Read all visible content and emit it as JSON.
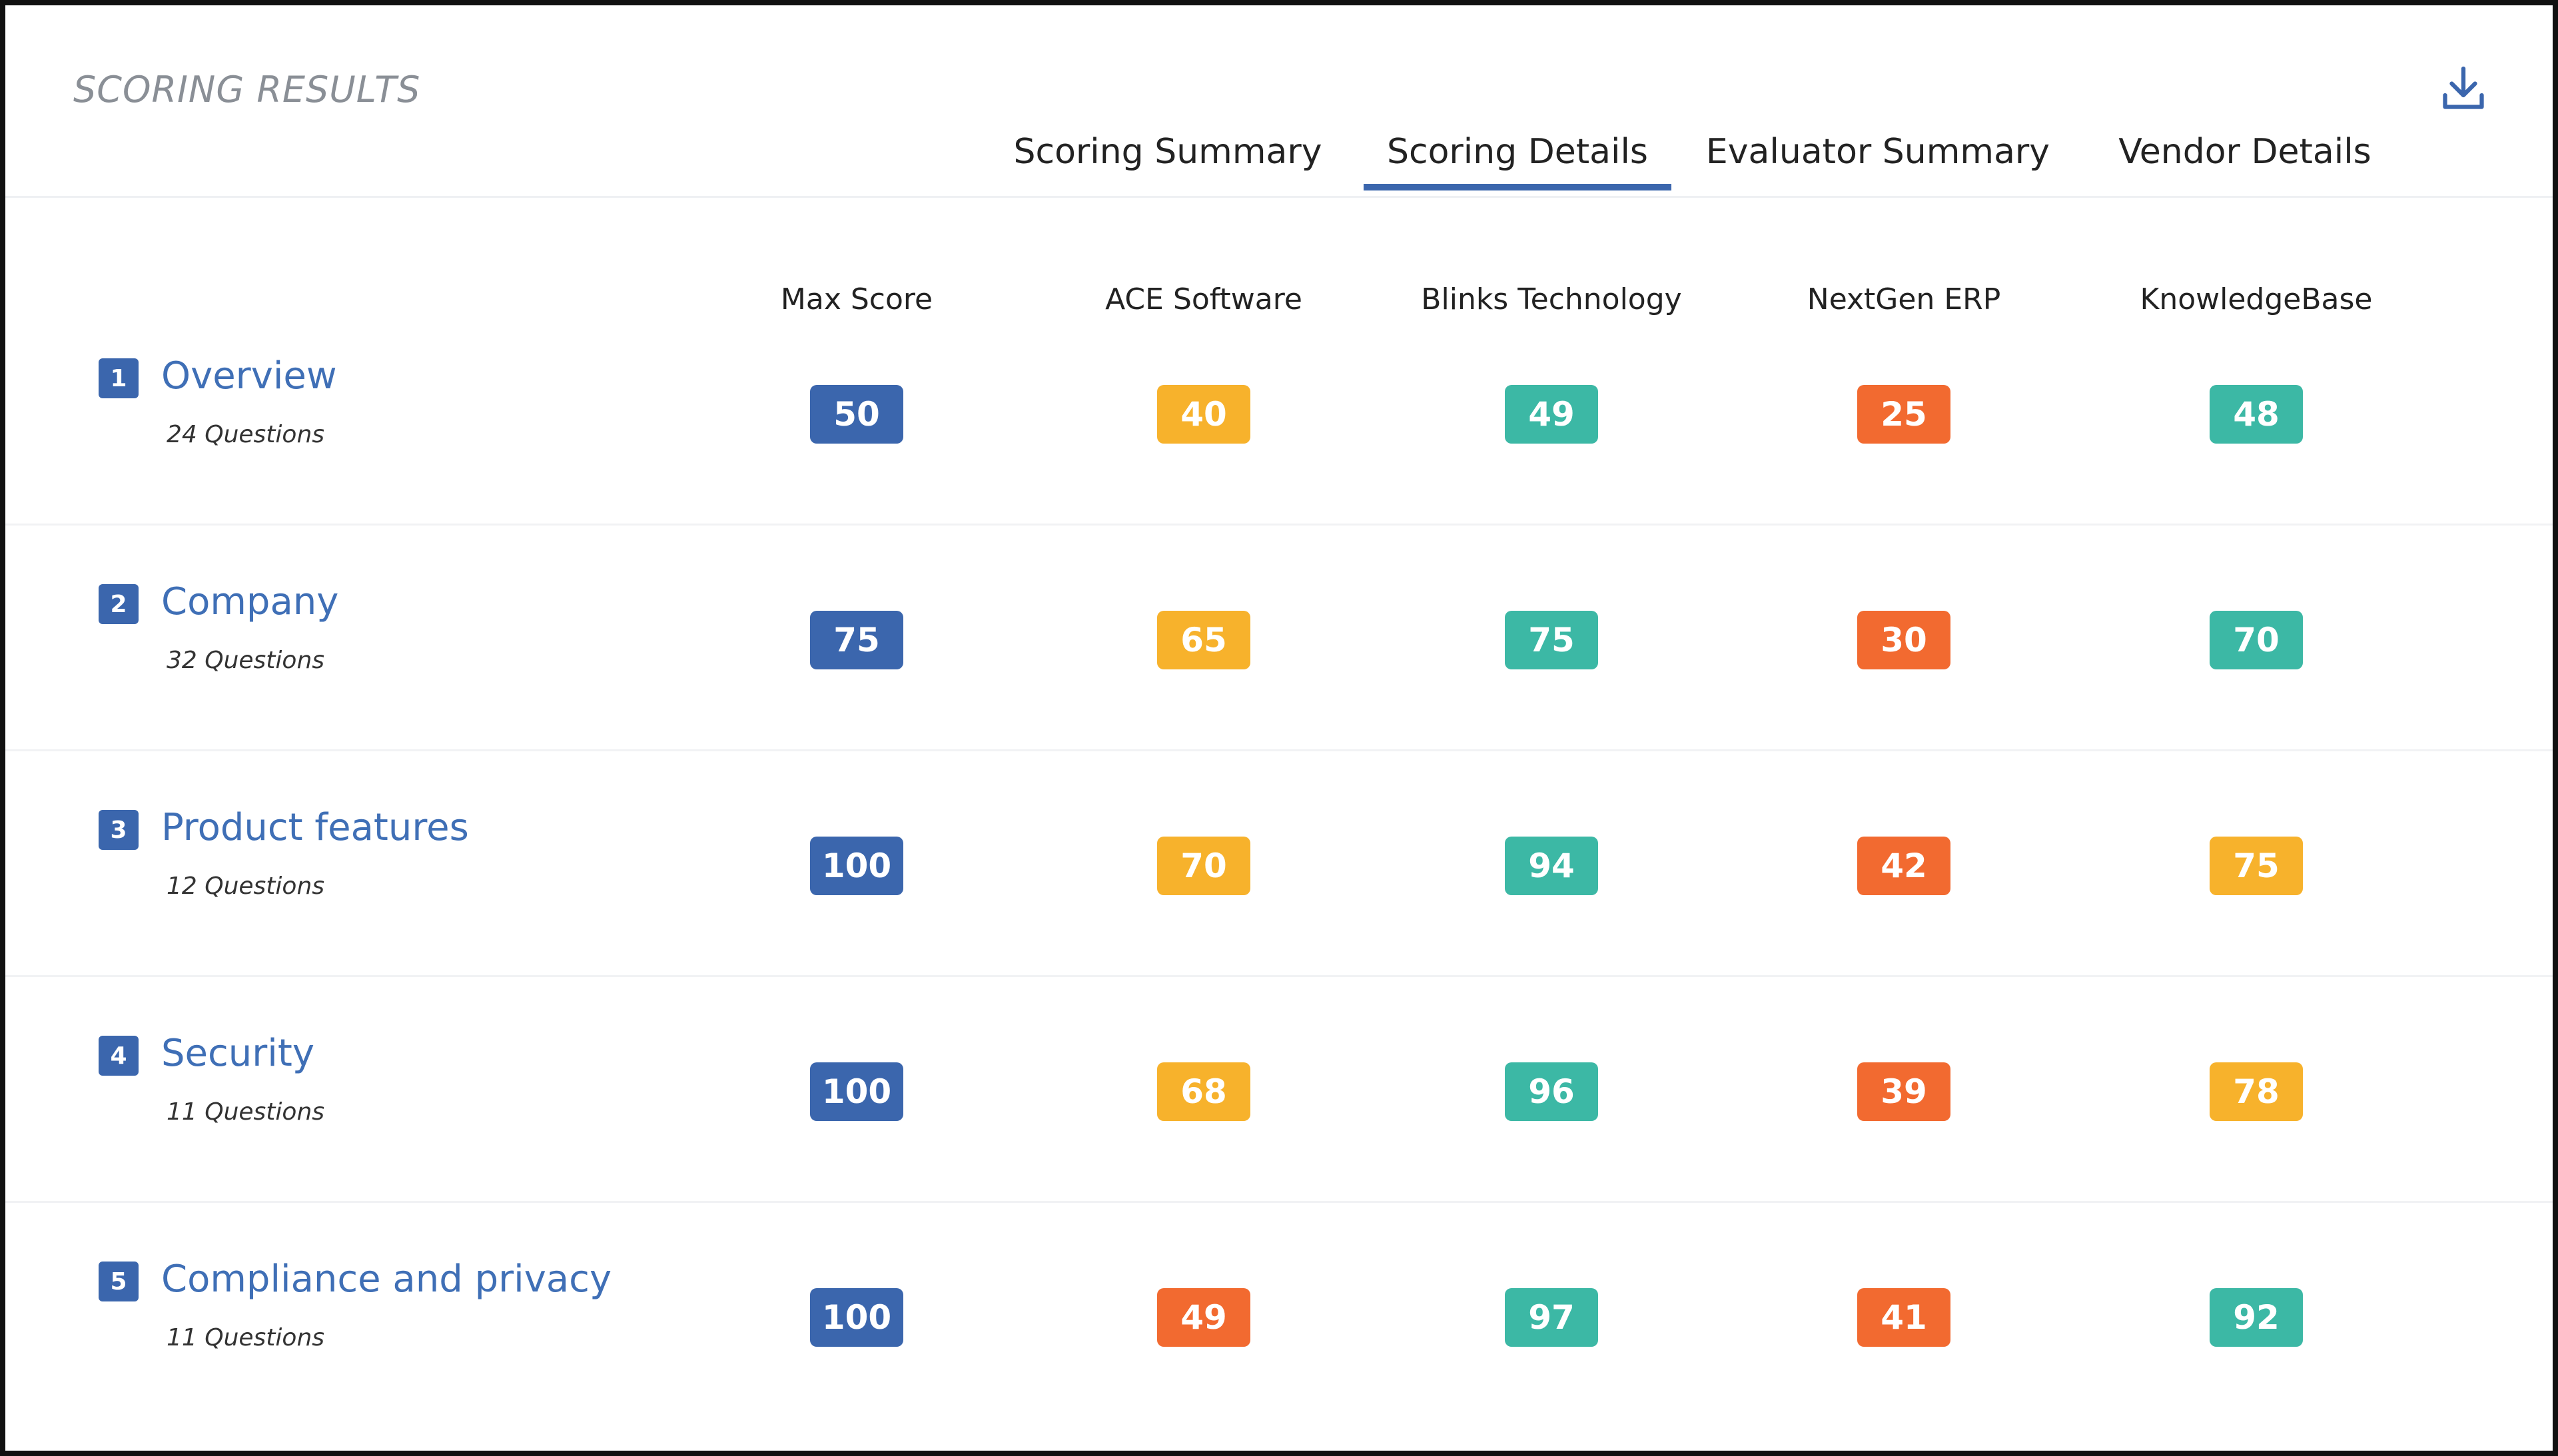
{
  "header": {
    "title": "SCORING RESULTS",
    "tabs": [
      "Scoring Summary",
      "Scoring Details",
      "Evaluator Summary",
      "Vendor Details"
    ],
    "active_tab": 1
  },
  "table": {
    "columns": [
      "Max Score",
      "ACE Software",
      "Blinks Technology",
      "NextGen ERP",
      "KnowledgeBase"
    ],
    "rows": [
      {
        "number": 1,
        "label": "Overview",
        "questions": "24 Questions",
        "scores": [
          {
            "value": 50,
            "color": "#3b66ad"
          },
          {
            "value": 40,
            "color": "#f7b22c"
          },
          {
            "value": 49,
            "color": "#3cb8a5"
          },
          {
            "value": 25,
            "color": "#f26a30"
          },
          {
            "value": 48,
            "color": "#3cb8a5"
          }
        ]
      },
      {
        "number": 2,
        "label": "Company",
        "questions": "32 Questions",
        "scores": [
          {
            "value": 75,
            "color": "#3b66ad"
          },
          {
            "value": 65,
            "color": "#f7b22c"
          },
          {
            "value": 75,
            "color": "#3cb8a5"
          },
          {
            "value": 30,
            "color": "#f26a30"
          },
          {
            "value": 70,
            "color": "#3cb8a5"
          }
        ]
      },
      {
        "number": 3,
        "label": "Product features",
        "questions": "12 Questions",
        "scores": [
          {
            "value": 100,
            "color": "#3b66ad"
          },
          {
            "value": 70,
            "color": "#f7b22c"
          },
          {
            "value": 94,
            "color": "#3cb8a5"
          },
          {
            "value": 42,
            "color": "#f26a30"
          },
          {
            "value": 75,
            "color": "#f7b22c"
          }
        ]
      },
      {
        "number": 4,
        "label": "Security",
        "questions": "11 Questions",
        "scores": [
          {
            "value": 100,
            "color": "#3b66ad"
          },
          {
            "value": 68,
            "color": "#f7b22c"
          },
          {
            "value": 96,
            "color": "#3cb8a5"
          },
          {
            "value": 39,
            "color": "#f26a30"
          },
          {
            "value": 78,
            "color": "#f7b22c"
          }
        ]
      },
      {
        "number": 5,
        "label": "Compliance and privacy",
        "questions": "11 Questions",
        "scores": [
          {
            "value": 100,
            "color": "#3b66ad"
          },
          {
            "value": 49,
            "color": "#f26a30"
          },
          {
            "value": 97,
            "color": "#3cb8a5"
          },
          {
            "value": 41,
            "color": "#f26a30"
          },
          {
            "value": 92,
            "color": "#3cb8a5"
          }
        ]
      }
    ]
  }
}
